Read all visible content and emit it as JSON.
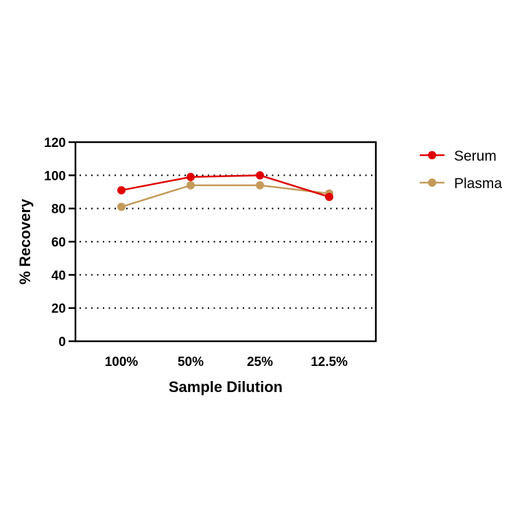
{
  "chart_data": {
    "type": "line",
    "title": "",
    "xlabel": "Sample Dilution",
    "ylabel": "% Recovery",
    "categories": [
      "100%",
      "50%",
      "25%",
      "12.5%"
    ],
    "ylim": [
      0,
      120
    ],
    "yticks": [
      0,
      20,
      40,
      60,
      80,
      100,
      120
    ],
    "grid": "horizontal dotted at 20,40,60,80,100",
    "legend_position": "right",
    "series": [
      {
        "name": "Serum",
        "color": "#e00000",
        "values": [
          91,
          99,
          100,
          87
        ]
      },
      {
        "name": "Plasma",
        "color": "#c49a5a",
        "values": [
          81,
          94,
          94,
          89
        ]
      }
    ]
  }
}
